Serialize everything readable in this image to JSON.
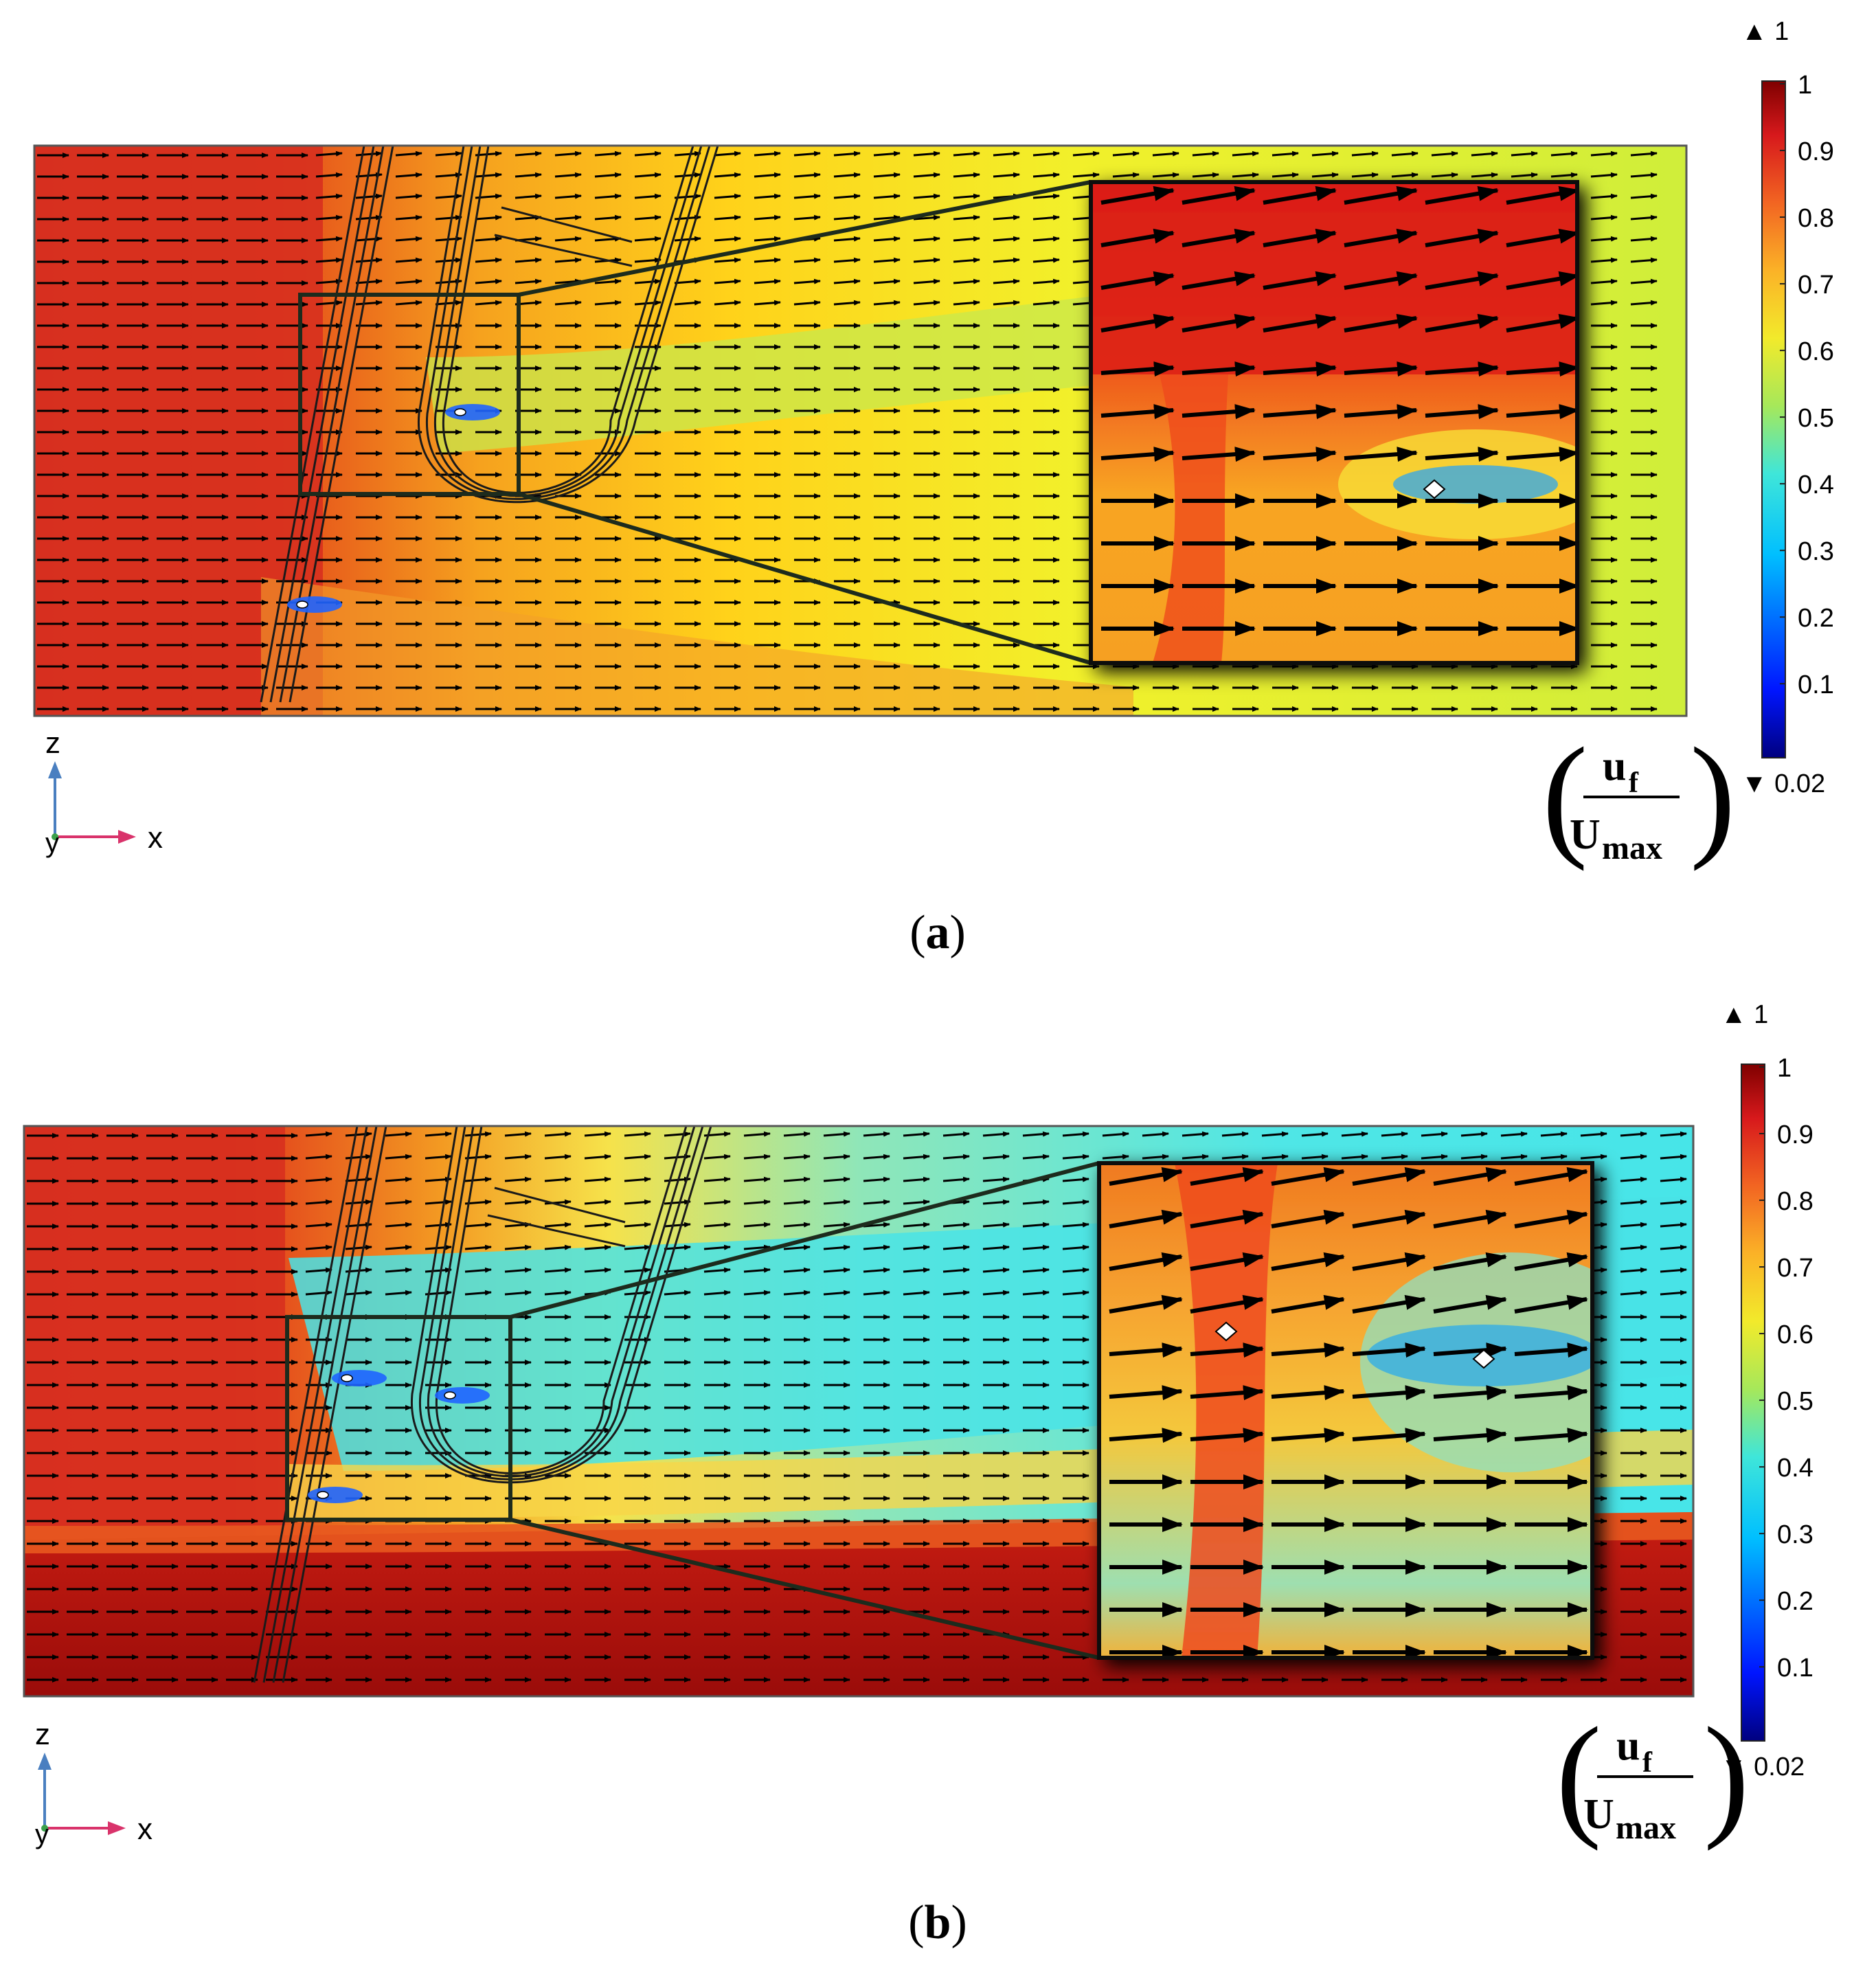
{
  "panels": [
    {
      "id": "a",
      "caption_letter": "a",
      "field": {
        "background_stops": [
          [
            "0",
            "#d7301f"
          ],
          [
            "0.13",
            "#e2401a"
          ],
          [
            "0.27",
            "#f6a21e"
          ],
          [
            "0.42",
            "#ffd21a"
          ],
          [
            "0.63",
            "#f2f02a"
          ],
          [
            "1",
            "#cfee3a"
          ]
        ],
        "lower_band": false
      },
      "inset_stops": [
        [
          "0",
          "#d71e14"
        ],
        [
          "0.4",
          "#ef5b1e"
        ],
        [
          "0.65",
          "#f8a523"
        ],
        [
          "1",
          "#f6a020"
        ]
      ],
      "colorbar": {
        "max_marker": "▲ 1",
        "min_marker": "▼ 0.02",
        "ticks": [
          "1",
          "0.9",
          "0.8",
          "0.7",
          "0.6",
          "0.5",
          "0.4",
          "0.3",
          "0.2",
          "0.1"
        ]
      },
      "quantity": {
        "numerator": "u",
        "numerator_sub": "f",
        "denominator": "U",
        "denominator_sub": "max"
      },
      "axes": {
        "z": "z",
        "x": "x",
        "y": "y"
      },
      "hotspots": [
        "stagnation-point-main",
        "stagnation-point-lower"
      ]
    },
    {
      "id": "b",
      "caption_letter": "b",
      "field": {
        "background_stops": [
          [
            "0",
            "#d7301f"
          ],
          [
            "0.12",
            "#e0361b"
          ],
          [
            "0.25",
            "#f39a22"
          ],
          [
            "0.35",
            "#f6e24a"
          ],
          [
            "0.5",
            "#8fe6b8"
          ],
          [
            "0.75",
            "#4fe6e6"
          ],
          [
            "1",
            "#47e5e8"
          ]
        ],
        "lower_band": true
      },
      "inset_stops": [
        [
          "0",
          "#f07a20"
        ],
        [
          "0.3",
          "#f6a631"
        ],
        [
          "0.55",
          "#f4c83c"
        ],
        [
          "0.85",
          "#9edfb0"
        ],
        [
          "1",
          "#f2b23a"
        ]
      ],
      "colorbar": {
        "max_marker": "▲ 1",
        "min_marker": "▼ 0.02",
        "ticks": [
          "1",
          "0.9",
          "0.8",
          "0.7",
          "0.6",
          "0.5",
          "0.4",
          "0.3",
          "0.2",
          "0.1"
        ]
      },
      "quantity": {
        "numerator": "u",
        "numerator_sub": "f",
        "denominator": "U",
        "denominator_sub": "max"
      },
      "axes": {
        "z": "z",
        "x": "x",
        "y": "y"
      },
      "hotspots": [
        "stagnation-point-main",
        "stagnation-point-left",
        "stagnation-point-lower"
      ]
    }
  ]
}
